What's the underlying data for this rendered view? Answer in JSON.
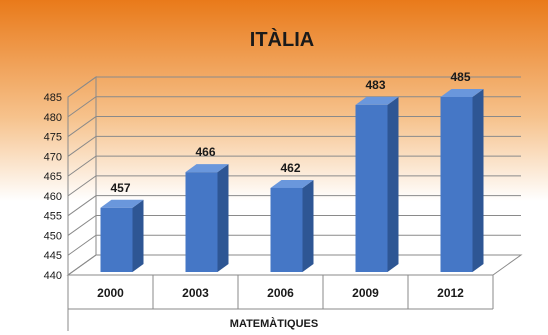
{
  "chart_data": {
    "type": "bar",
    "title": "ITÀLIA",
    "xlabel": "MATEMÀTIQUES",
    "ylabel": "",
    "categories": [
      "2000",
      "2003",
      "2006",
      "2009",
      "2012"
    ],
    "values": [
      457,
      466,
      462,
      483,
      485
    ],
    "ylim": [
      440,
      485
    ],
    "yticks": [
      440,
      445,
      450,
      455,
      460,
      465,
      470,
      475,
      480,
      485
    ],
    "data_labels": [
      "457",
      "466",
      "462",
      "483",
      "485"
    ],
    "grid": true,
    "legend": "none",
    "colors": {
      "bar_front": "#4577c6",
      "bar_side": "#2e5694",
      "bar_top": "#6a97dc",
      "background_top": "#e97a1a",
      "background_bottom": "#ffffff",
      "grid": "#8a8a8a"
    }
  }
}
